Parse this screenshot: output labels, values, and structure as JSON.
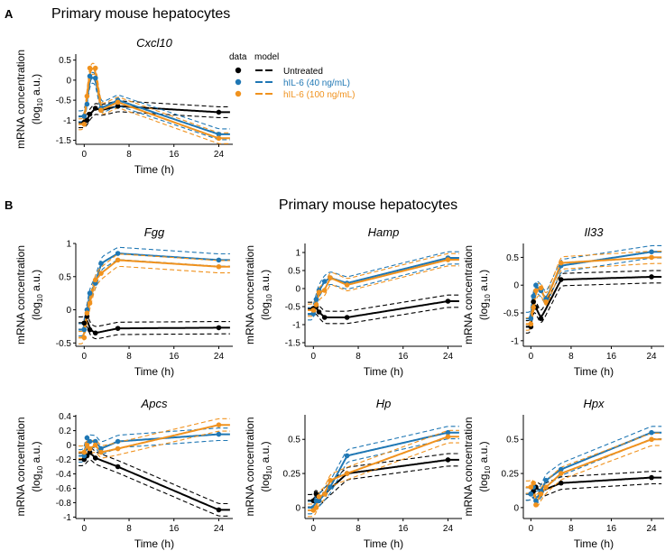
{
  "figure": {
    "panel_a": {
      "letter": "A",
      "heading": "Primary mouse hepatocytes"
    },
    "panel_b": {
      "letter": "B",
      "heading": "Primary mouse hepatocytes"
    },
    "ylabel_line1": "mRNA concentration",
    "ylabel_line2_pre": "(log",
    "ylabel_line2_sub": "10",
    "ylabel_line2_post": " a.u.)",
    "xlabel": "Time (h)"
  },
  "legend": {
    "header_data": "data",
    "header_model": "model",
    "entries": [
      {
        "label": "Untreated",
        "color": "#000000"
      },
      {
        "label": "hIL-6 (40 ng/mL)",
        "color": "#1f77b4"
      },
      {
        "label": "hIL-6 (100 ng/mL)",
        "color": "#f0921e"
      }
    ]
  },
  "colors": {
    "untreated": "#000000",
    "il6_40": "#1f77b4",
    "il6_100": "#f0921e"
  },
  "chart_data": [
    {
      "type": "line",
      "title": "Cxcl10",
      "xlabel": "Time (h)",
      "ylabel": "mRNA concentration (log10 a.u.)",
      "xlim": [
        -1.5,
        26.5
      ],
      "ylim": [
        -1.6,
        0.65
      ],
      "xticks": [
        0,
        8,
        16,
        24
      ],
      "xtick_labels": [
        "0",
        "8",
        "16",
        "24"
      ],
      "yticks": [
        -1.5,
        -1,
        -0.5,
        0,
        0.5
      ],
      "ytick_labels": [
        "-1.5",
        "-1",
        "-0.5",
        "0",
        "0.5"
      ],
      "data_points": [
        {
          "series": "Untreated",
          "x": [
            0,
            0.5,
            1,
            2,
            3,
            6,
            24
          ],
          "y": [
            -1.05,
            -1.0,
            -0.85,
            -0.7,
            -0.75,
            -0.65,
            -0.8
          ]
        },
        {
          "series": "hIL-6 (40 ng/mL)",
          "x": [
            0,
            0.5,
            1,
            2,
            3,
            6,
            24
          ],
          "y": [
            -0.9,
            -0.6,
            0.1,
            0.05,
            -0.7,
            -0.5,
            -1.35
          ]
        },
        {
          "series": "hIL-6 (100 ng/mL)",
          "x": [
            0,
            0.5,
            1,
            2,
            3,
            6,
            24
          ],
          "y": [
            -1.1,
            -0.4,
            0.3,
            0.3,
            -0.75,
            -0.55,
            -1.45
          ]
        }
      ]
    },
    {
      "type": "line",
      "title": "Fgg",
      "xlabel": "Time (h)",
      "ylabel": "mRNA concentration (log10 a.u.)",
      "xlim": [
        -1.5,
        26.5
      ],
      "ylim": [
        -0.55,
        1.0
      ],
      "xticks": [
        0,
        8,
        16,
        24
      ],
      "xtick_labels": [
        "0",
        "8",
        "16",
        "24"
      ],
      "yticks": [
        -0.5,
        0,
        0.5,
        1
      ],
      "ytick_labels": [
        "-0.5",
        "0",
        "0.5",
        "1"
      ],
      "data_points": [
        {
          "series": "Untreated",
          "x": [
            0,
            0.5,
            1,
            2,
            6,
            24
          ],
          "y": [
            -0.2,
            -0.1,
            -0.3,
            -0.35,
            -0.28,
            -0.27
          ]
        },
        {
          "series": "hIL-6 (40 ng/mL)",
          "x": [
            0,
            0.5,
            1,
            2,
            3,
            6,
            24
          ],
          "y": [
            -0.3,
            0.0,
            0.25,
            0.4,
            0.7,
            0.85,
            0.75
          ]
        },
        {
          "series": "hIL-6 (100 ng/mL)",
          "x": [
            0,
            0.5,
            1,
            2,
            3,
            6,
            24
          ],
          "y": [
            -0.42,
            -0.05,
            0.1,
            0.45,
            0.55,
            0.75,
            0.65
          ]
        }
      ]
    },
    {
      "type": "line",
      "title": "Hamp",
      "xlabel": "Time (h)",
      "ylabel": "mRNA concentration (log10 a.u.)",
      "xlim": [
        -1.5,
        26.5
      ],
      "ylim": [
        -1.6,
        1.25
      ],
      "xticks": [
        0,
        8,
        16,
        24
      ],
      "xtick_labels": [
        "0",
        "8",
        "16",
        "24"
      ],
      "yticks": [
        -1.5,
        -1,
        -0.5,
        0,
        0.5,
        1
      ],
      "ytick_labels": [
        "-1.5",
        "-1",
        "-0.5",
        "0",
        "0.5",
        "1"
      ],
      "data_points": [
        {
          "series": "Untreated",
          "x": [
            0,
            0.5,
            1,
            2,
            6,
            24
          ],
          "y": [
            -0.55,
            -0.5,
            -0.65,
            -0.8,
            -0.8,
            -0.35
          ]
        },
        {
          "series": "hIL-6 (40 ng/mL)",
          "x": [
            0,
            0.5,
            1,
            2,
            3,
            6,
            24
          ],
          "y": [
            -0.7,
            -0.3,
            -0.05,
            0.2,
            0.3,
            0.15,
            0.85
          ]
        },
        {
          "series": "hIL-6 (100 ng/mL)",
          "x": [
            0,
            0.5,
            1,
            2,
            3,
            6,
            24
          ],
          "y": [
            -0.6,
            -0.45,
            -0.1,
            -0.05,
            0.3,
            0.1,
            0.8
          ]
        }
      ]
    },
    {
      "type": "line",
      "title": "Il33",
      "xlabel": "Time (h)",
      "ylabel": "mRNA concentration (log10 a.u.)",
      "xlim": [
        -1.5,
        26.5
      ],
      "ylim": [
        -1.1,
        0.75
      ],
      "xticks": [
        0,
        8,
        16,
        24
      ],
      "xtick_labels": [
        "0",
        "8",
        "16",
        "24"
      ],
      "yticks": [
        -1,
        -0.5,
        0,
        0.5
      ],
      "ytick_labels": [
        "-1",
        "-0.5",
        "0",
        "0.5"
      ],
      "data_points": [
        {
          "series": "Untreated",
          "x": [
            0,
            0.5,
            1,
            2,
            6,
            24
          ],
          "y": [
            -0.75,
            -0.3,
            -0.4,
            -0.6,
            0.1,
            0.15
          ]
        },
        {
          "series": "hIL-6 (40 ng/mL)",
          "x": [
            0,
            0.5,
            1,
            2,
            3,
            6,
            24
          ],
          "y": [
            -0.6,
            -0.2,
            0.0,
            -0.1,
            -0.25,
            0.35,
            0.6
          ]
        },
        {
          "series": "hIL-6 (100 ng/mL)",
          "x": [
            0,
            0.5,
            1,
            2,
            3,
            6,
            24
          ],
          "y": [
            -0.7,
            -0.4,
            -0.1,
            -0.05,
            -0.3,
            0.4,
            0.5
          ]
        }
      ]
    },
    {
      "type": "line",
      "title": "Apcs",
      "xlabel": "Time (h)",
      "ylabel": "mRNA concentration (log10 a.u.)",
      "xlim": [
        -1.5,
        26.5
      ],
      "ylim": [
        -1.02,
        0.42
      ],
      "xticks": [
        0,
        8,
        16,
        24
      ],
      "xtick_labels": [
        "0",
        "8",
        "16",
        "24"
      ],
      "yticks": [
        -1,
        -0.8,
        -0.6,
        -0.4,
        -0.2,
        0,
        0.2,
        0.4
      ],
      "ytick_labels": [
        "-1",
        "-0.8",
        "-0.6",
        "-0.4",
        "-0.2",
        "0",
        "0.2",
        "0.4"
      ],
      "data_points": [
        {
          "series": "Untreated",
          "x": [
            0,
            0.5,
            1,
            2,
            6,
            24
          ],
          "y": [
            -0.2,
            -0.15,
            -0.1,
            -0.18,
            -0.3,
            -0.9
          ]
        },
        {
          "series": "hIL-6 (40 ng/mL)",
          "x": [
            0,
            0.5,
            1,
            2,
            3,
            6,
            24
          ],
          "y": [
            -0.15,
            0.1,
            0.05,
            0.05,
            -0.05,
            0.05,
            0.15
          ]
        },
        {
          "series": "hIL-6 (100 ng/mL)",
          "x": [
            0,
            0.5,
            1,
            2,
            3,
            6,
            24
          ],
          "y": [
            -0.1,
            0.0,
            -0.05,
            0.0,
            -0.1,
            -0.05,
            0.28
          ]
        }
      ]
    },
    {
      "type": "line",
      "title": "Hp",
      "xlabel": "Time (h)",
      "ylabel": "mRNA concentration (log10 a.u.)",
      "xlim": [
        -1.5,
        26.5
      ],
      "ylim": [
        -0.08,
        0.68
      ],
      "xticks": [
        0,
        8,
        16,
        24
      ],
      "xtick_labels": [
        "0",
        "8",
        "16",
        "24"
      ],
      "yticks": [
        0,
        0.25,
        0.5
      ],
      "ytick_labels": [
        "0",
        "0.25",
        "0.5"
      ],
      "data_points": [
        {
          "series": "Untreated",
          "x": [
            0,
            0.5,
            1,
            2,
            6,
            24
          ],
          "y": [
            0.05,
            0.1,
            0.05,
            0.1,
            0.25,
            0.35
          ]
        },
        {
          "series": "hIL-6 (40 ng/mL)",
          "x": [
            0,
            0.5,
            1,
            2,
            3,
            6,
            24
          ],
          "y": [
            0.0,
            0.05,
            0.05,
            0.1,
            0.15,
            0.38,
            0.55
          ]
        },
        {
          "series": "hIL-6 (100 ng/mL)",
          "x": [
            0,
            0.5,
            1,
            2,
            3,
            6,
            24
          ],
          "y": [
            -0.02,
            0.0,
            0.08,
            0.1,
            0.2,
            0.25,
            0.52
          ]
        }
      ]
    },
    {
      "type": "line",
      "title": "Hpx",
      "xlabel": "Time (h)",
      "ylabel": "mRNA concentration (log10 a.u.)",
      "xlim": [
        -1.5,
        26.5
      ],
      "ylim": [
        -0.08,
        0.68
      ],
      "xticks": [
        0,
        8,
        16,
        24
      ],
      "xtick_labels": [
        "0",
        "8",
        "16",
        "24"
      ],
      "yticks": [
        0,
        0.25,
        0.5
      ],
      "ytick_labels": [
        "0",
        "0.25",
        "0.5"
      ],
      "data_points": [
        {
          "series": "Untreated",
          "x": [
            0,
            0.5,
            1,
            2,
            6,
            24
          ],
          "y": [
            0.1,
            0.12,
            0.15,
            0.12,
            0.18,
            0.22
          ]
        },
        {
          "series": "hIL-6 (40 ng/mL)",
          "x": [
            0,
            0.5,
            1,
            2,
            3,
            6,
            24
          ],
          "y": [
            0.1,
            0.15,
            0.05,
            0.12,
            0.2,
            0.28,
            0.55
          ]
        },
        {
          "series": "hIL-6 (100 ng/mL)",
          "x": [
            0,
            0.5,
            1,
            2,
            3,
            6,
            24
          ],
          "y": [
            0.15,
            0.18,
            0.02,
            0.1,
            0.15,
            0.25,
            0.5
          ]
        }
      ]
    }
  ]
}
